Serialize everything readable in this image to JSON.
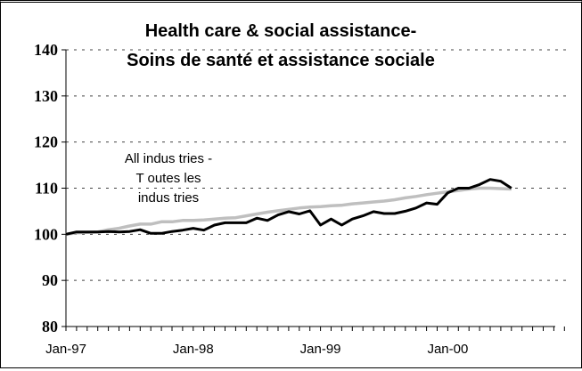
{
  "chart_data": {
    "type": "line",
    "title": [
      "Health care & social assistance-",
      "Soins de santé et assistance sociale"
    ],
    "xlabel": "",
    "ylabel": "",
    "ylim": [
      80,
      140
    ],
    "yticks": [
      80,
      90,
      100,
      110,
      120,
      130,
      140
    ],
    "xtick_labels": [
      "Jan-97",
      "Jan-98",
      "Jan-99",
      "Jan-00"
    ],
    "x_start": "Jan-97",
    "x_end": "Jul-00",
    "grid": "horizontal dashed",
    "annotation": [
      "All indus tries -",
      "T outes les",
      "indus tries"
    ],
    "x": [
      "Jan-97",
      "Feb-97",
      "Mar-97",
      "Apr-97",
      "May-97",
      "Jun-97",
      "Jul-97",
      "Aug-97",
      "Sep-97",
      "Oct-97",
      "Nov-97",
      "Dec-97",
      "Jan-98",
      "Feb-98",
      "Mar-98",
      "Apr-98",
      "May-98",
      "Jun-98",
      "Jul-98",
      "Aug-98",
      "Sep-98",
      "Oct-98",
      "Nov-98",
      "Dec-98",
      "Jan-99",
      "Feb-99",
      "Mar-99",
      "Apr-99",
      "May-99",
      "Jun-99",
      "Jul-99",
      "Aug-99",
      "Sep-99",
      "Oct-99",
      "Nov-99",
      "Dec-99",
      "Jan-00",
      "Feb-00",
      "Mar-00",
      "Apr-00",
      "May-00",
      "Jun-00",
      "Jul-00"
    ],
    "series": [
      {
        "color": "#000000",
        "values": [
          100,
          100.5,
          100.5,
          100.5,
          100.6,
          100.5,
          100.6,
          101.0,
          100.2,
          100.2,
          100.6,
          100.9,
          101.3,
          100.9,
          102.0,
          102.5,
          102.5,
          102.5,
          103.5,
          103.0,
          104.2,
          104.9,
          104.4,
          105.1,
          102.0,
          103.3,
          102.0,
          103.3,
          104.0,
          104.9,
          104.5,
          104.5,
          105.0,
          105.7,
          106.8,
          106.5,
          109.0,
          110.0,
          110.0,
          110.8,
          111.9,
          111.5,
          110.0
        ]
      },
      {
        "color": "#bfbfbf",
        "values": [
          100,
          100.3,
          100.4,
          100.5,
          101.0,
          101.3,
          101.8,
          102.2,
          102.2,
          102.7,
          102.7,
          103.0,
          103.0,
          103.1,
          103.3,
          103.5,
          103.6,
          104.0,
          104.4,
          104.8,
          105.1,
          105.4,
          105.7,
          105.9,
          106.0,
          106.2,
          106.3,
          106.6,
          106.8,
          107.0,
          107.2,
          107.5,
          107.9,
          108.2,
          108.6,
          108.9,
          109.2,
          109.5,
          109.8,
          110.0,
          110.0,
          109.9,
          109.8
        ]
      }
    ]
  }
}
